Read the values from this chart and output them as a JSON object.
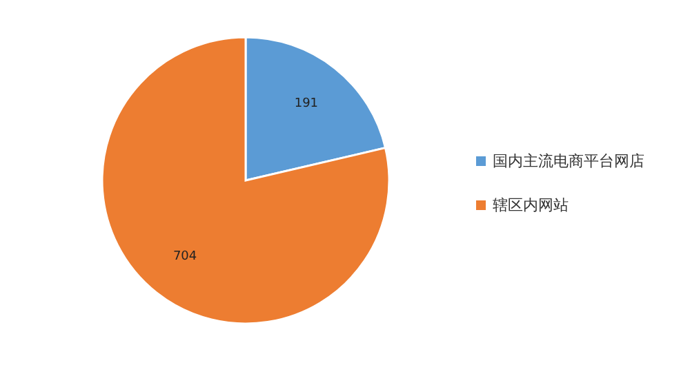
{
  "chart_data": {
    "type": "pie",
    "categories": [
      "国内主流电商平台网店",
      "辖区内网站"
    ],
    "values": [
      191,
      704
    ],
    "colors": [
      "#5b9bd5",
      "#ed7d31"
    ],
    "data_labels": true,
    "legend": "right"
  }
}
